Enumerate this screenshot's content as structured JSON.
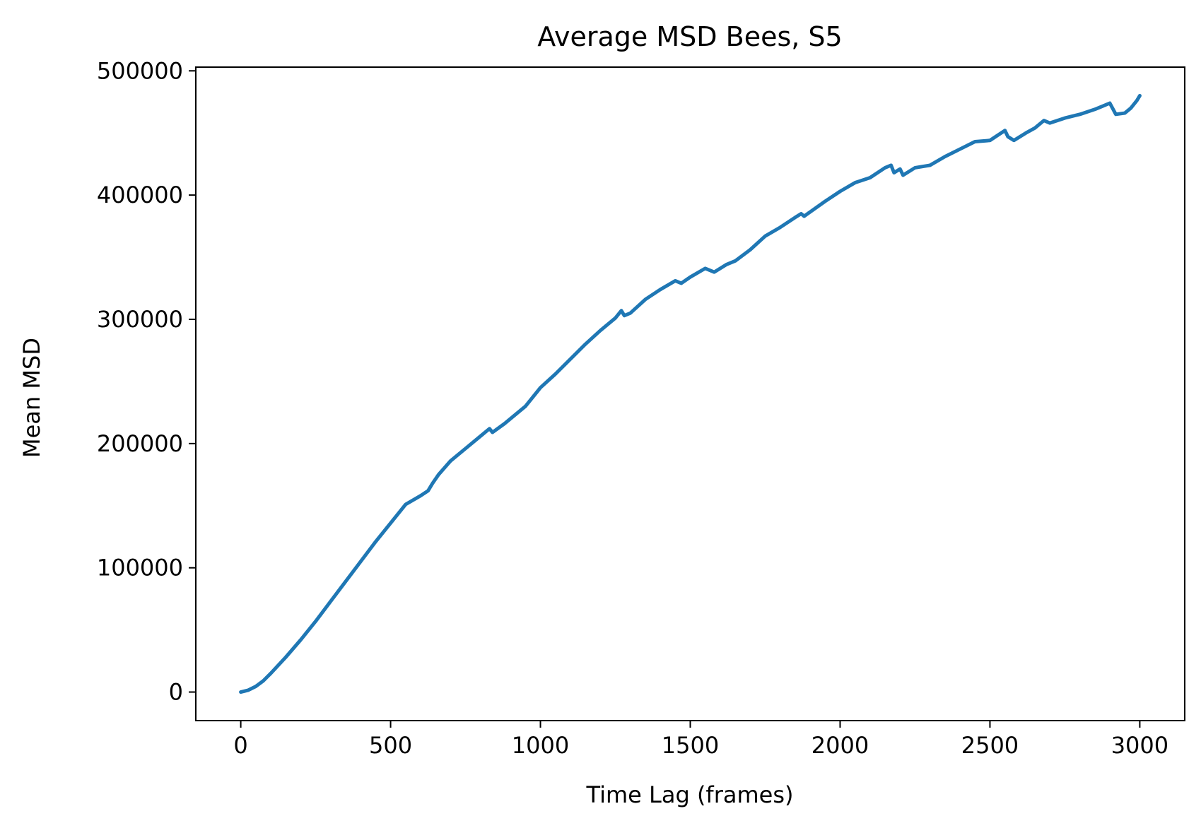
{
  "chart_data": {
    "type": "line",
    "title": "Average MSD Bees, S5",
    "xlabel": "Time Lag (frames)",
    "ylabel": "Mean MSD",
    "xlim": [
      -150,
      3150
    ],
    "ylim": [
      -23000,
      503000
    ],
    "xticks": [
      0,
      500,
      1000,
      1500,
      2000,
      2500,
      3000
    ],
    "yticks": [
      0,
      100000,
      200000,
      300000,
      400000,
      500000
    ],
    "xtick_labels": [
      "0",
      "500",
      "1000",
      "1500",
      "2000",
      "2500",
      "3000"
    ],
    "ytick_labels": [
      "0",
      "100000",
      "200000",
      "300000",
      "400000",
      "500000"
    ],
    "grid": false,
    "series": [
      {
        "color": "#1f77b4",
        "points": [
          [
            0,
            0
          ],
          [
            25,
            1500
          ],
          [
            50,
            4500
          ],
          [
            75,
            9000
          ],
          [
            100,
            15000
          ],
          [
            150,
            28000
          ],
          [
            200,
            42000
          ],
          [
            250,
            57000
          ],
          [
            300,
            73000
          ],
          [
            350,
            89000
          ],
          [
            400,
            105000
          ],
          [
            450,
            121000
          ],
          [
            500,
            136000
          ],
          [
            550,
            151000
          ],
          [
            600,
            158000
          ],
          [
            625,
            162000
          ],
          [
            640,
            168000
          ],
          [
            660,
            175000
          ],
          [
            700,
            186000
          ],
          [
            750,
            196000
          ],
          [
            800,
            206000
          ],
          [
            830,
            212000
          ],
          [
            840,
            209000
          ],
          [
            880,
            216000
          ],
          [
            950,
            230000
          ],
          [
            1000,
            245000
          ],
          [
            1050,
            256000
          ],
          [
            1100,
            268000
          ],
          [
            1150,
            280000
          ],
          [
            1200,
            291000
          ],
          [
            1250,
            301000
          ],
          [
            1270,
            307000
          ],
          [
            1280,
            303000
          ],
          [
            1300,
            305000
          ],
          [
            1350,
            316000
          ],
          [
            1400,
            324000
          ],
          [
            1450,
            331000
          ],
          [
            1470,
            329000
          ],
          [
            1500,
            334000
          ],
          [
            1550,
            341000
          ],
          [
            1580,
            338000
          ],
          [
            1620,
            344000
          ],
          [
            1650,
            347000
          ],
          [
            1700,
            356000
          ],
          [
            1750,
            367000
          ],
          [
            1800,
            374000
          ],
          [
            1850,
            382000
          ],
          [
            1870,
            385000
          ],
          [
            1880,
            383000
          ],
          [
            1950,
            395000
          ],
          [
            2000,
            403000
          ],
          [
            2050,
            410000
          ],
          [
            2100,
            414000
          ],
          [
            2150,
            422000
          ],
          [
            2170,
            424000
          ],
          [
            2180,
            418000
          ],
          [
            2200,
            421000
          ],
          [
            2210,
            416000
          ],
          [
            2250,
            422000
          ],
          [
            2300,
            424000
          ],
          [
            2350,
            431000
          ],
          [
            2400,
            437000
          ],
          [
            2450,
            443000
          ],
          [
            2500,
            444000
          ],
          [
            2550,
            452000
          ],
          [
            2560,
            447000
          ],
          [
            2580,
            444000
          ],
          [
            2620,
            450000
          ],
          [
            2650,
            454000
          ],
          [
            2680,
            460000
          ],
          [
            2700,
            458000
          ],
          [
            2750,
            462000
          ],
          [
            2800,
            465000
          ],
          [
            2850,
            469000
          ],
          [
            2880,
            472000
          ],
          [
            2900,
            474000
          ],
          [
            2920,
            465000
          ],
          [
            2950,
            466000
          ],
          [
            2970,
            470000
          ],
          [
            2990,
            476000
          ],
          [
            3000,
            480000
          ]
        ]
      }
    ]
  }
}
